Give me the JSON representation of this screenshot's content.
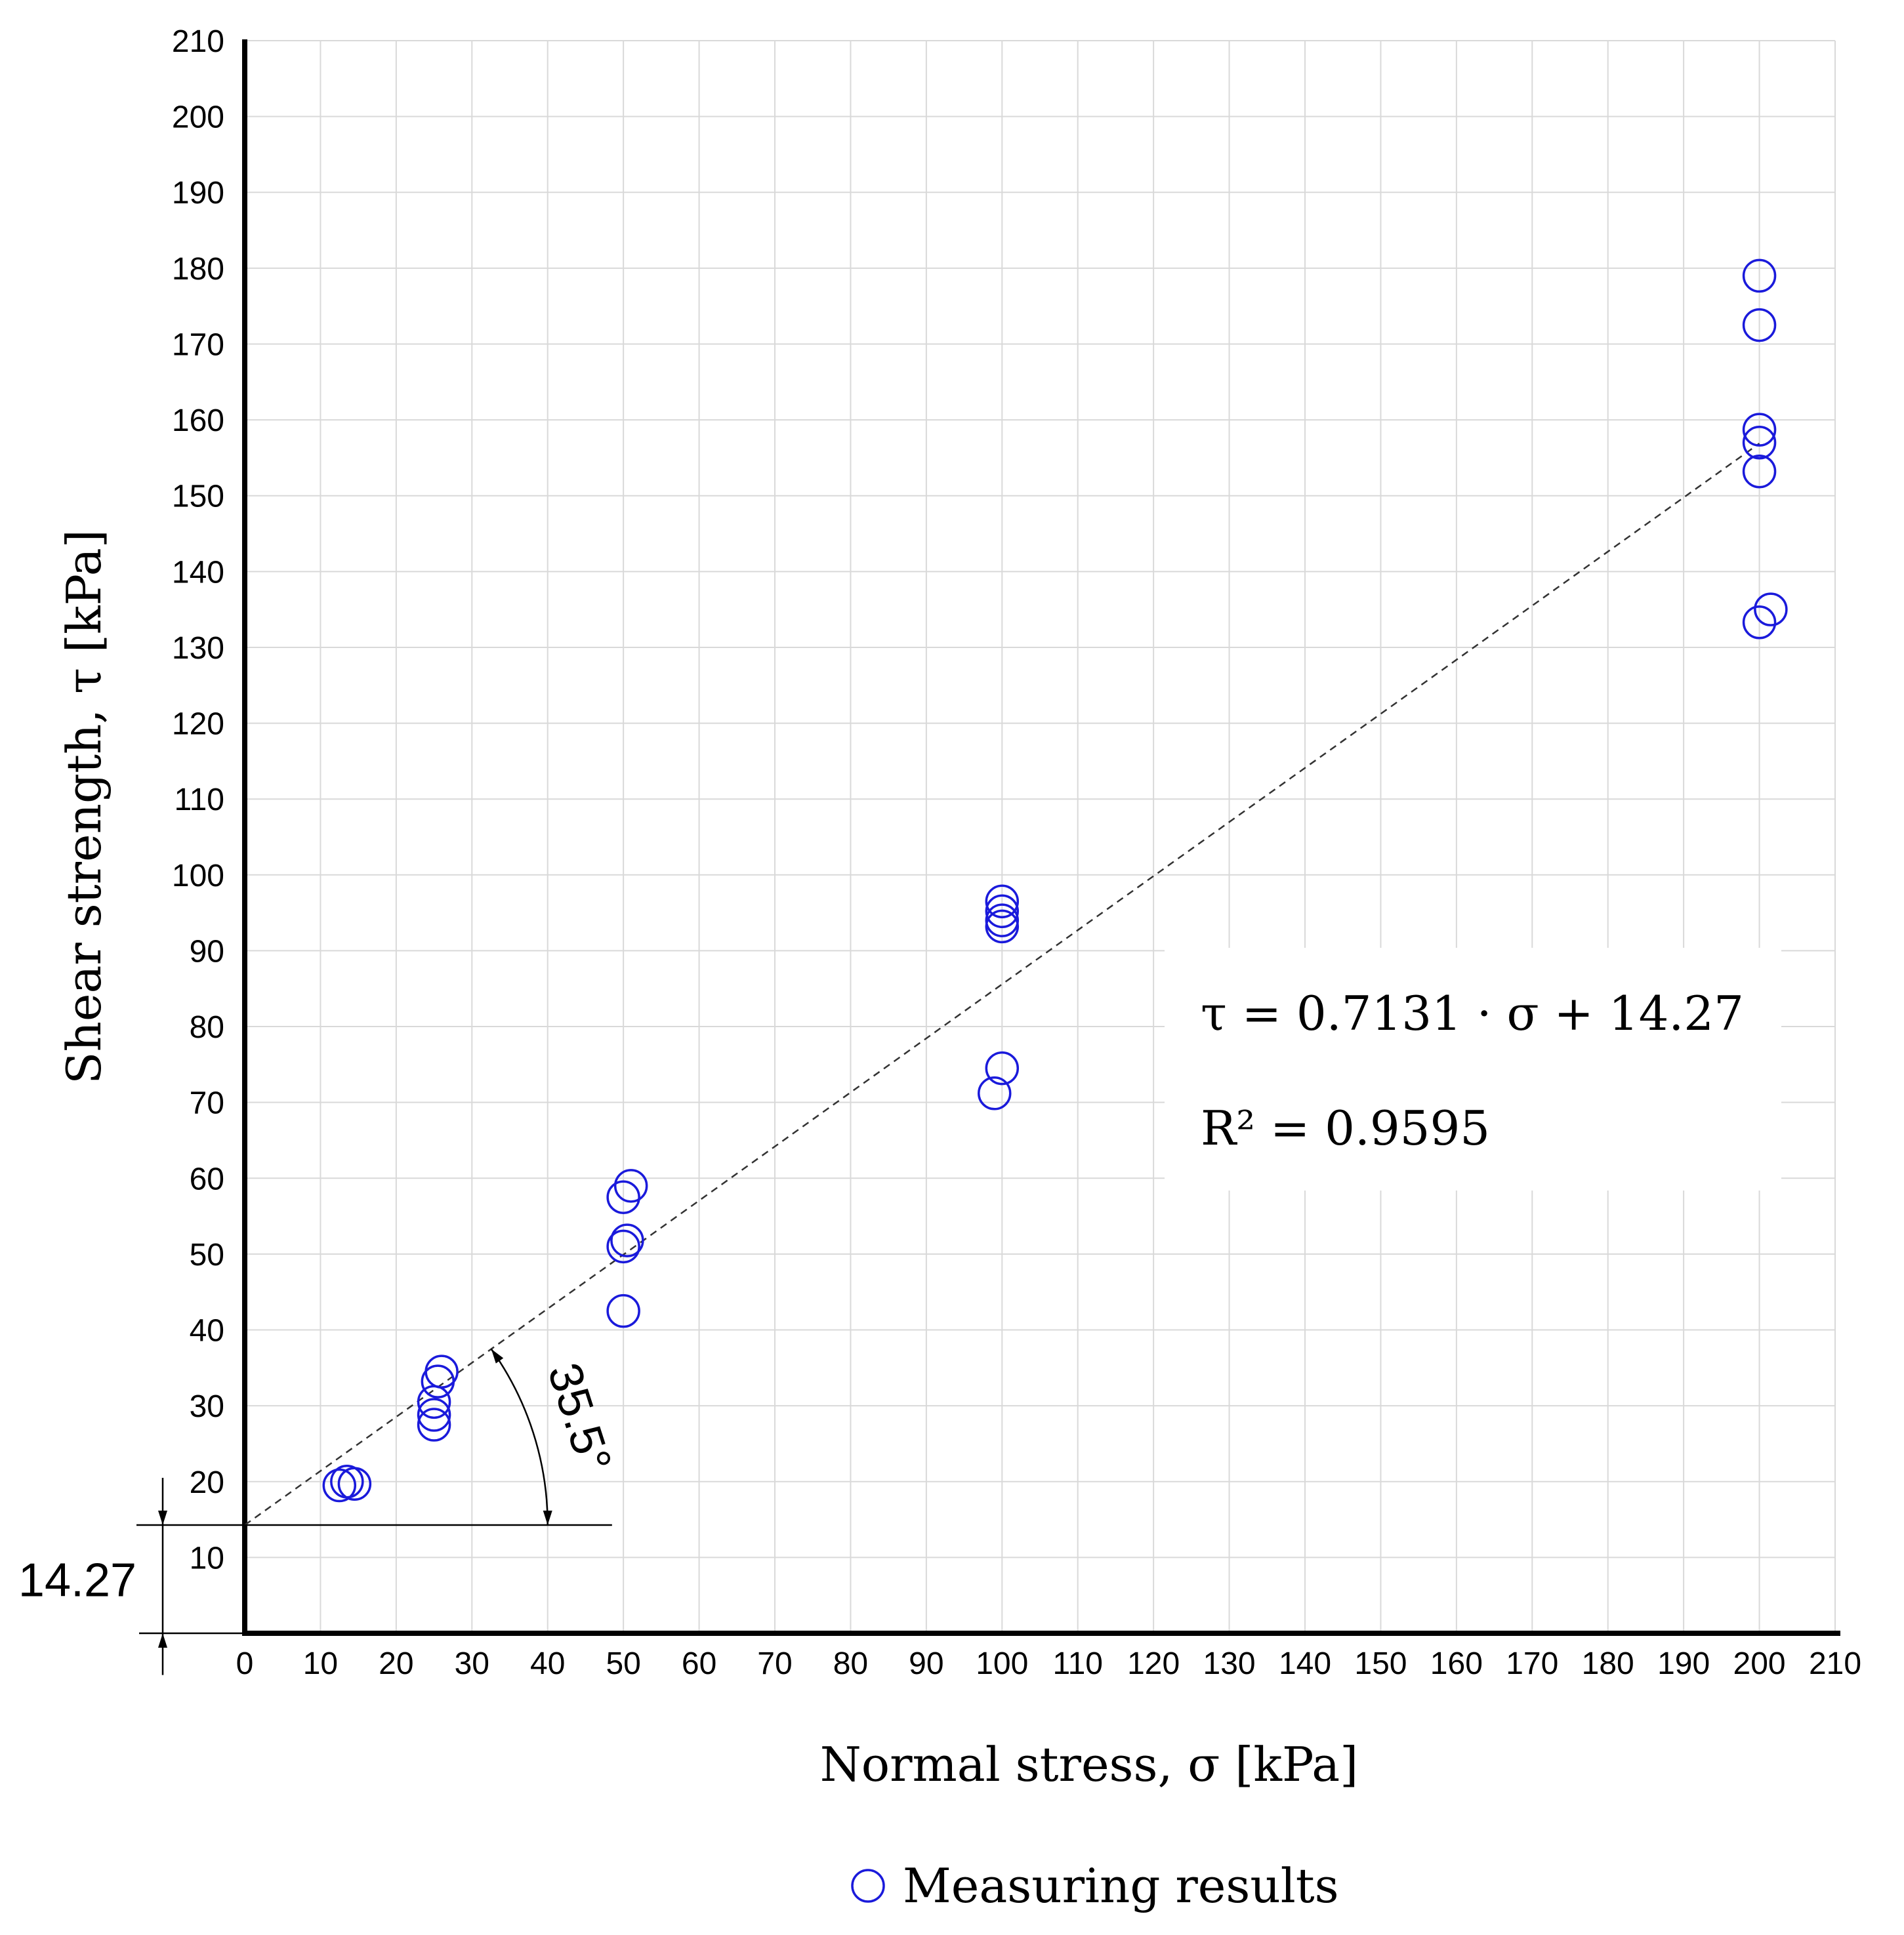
{
  "chart_data": {
    "type": "scatter",
    "title": "",
    "xlabel": "Normal stress, σ [kPa]",
    "ylabel": "Shear strength, τ [kPa]",
    "xlim": [
      0,
      210
    ],
    "ylim": [
      0,
      210
    ],
    "x_ticks": [
      0,
      10,
      20,
      30,
      40,
      50,
      60,
      70,
      80,
      90,
      100,
      110,
      120,
      130,
      140,
      150,
      160,
      170,
      180,
      190,
      200,
      210
    ],
    "y_ticks": [
      10,
      20,
      30,
      40,
      50,
      60,
      70,
      80,
      90,
      100,
      110,
      120,
      130,
      140,
      150,
      160,
      170,
      180,
      190,
      200,
      210
    ],
    "grid": true,
    "series": [
      {
        "name": "Measuring results",
        "marker": "open-circle",
        "color": "#1a1adb",
        "points": [
          [
            12.5,
            19.5
          ],
          [
            13.5,
            20.0
          ],
          [
            14.5,
            19.7
          ],
          [
            25.0,
            27.5
          ],
          [
            25.0,
            28.8
          ],
          [
            25.0,
            30.5
          ],
          [
            25.5,
            33.2
          ],
          [
            26.0,
            34.5
          ],
          [
            50.0,
            42.5
          ],
          [
            50.0,
            57.5
          ],
          [
            50.0,
            51.0
          ],
          [
            50.5,
            51.8
          ],
          [
            51.0,
            59.0
          ],
          [
            99.0,
            71.2
          ],
          [
            100.0,
            74.5
          ],
          [
            100.0,
            93.2
          ],
          [
            100.0,
            94.0
          ],
          [
            100.0,
            95.2
          ],
          [
            100.0,
            96.5
          ],
          [
            200.0,
            133.3
          ],
          [
            201.5,
            135.0
          ],
          [
            200.0,
            153.2
          ],
          [
            200.0,
            157.0
          ],
          [
            200.0,
            158.7
          ],
          [
            200.0,
            172.5
          ],
          [
            200.0,
            179.0
          ]
        ]
      }
    ],
    "fit": {
      "slope": 0.7131,
      "intercept": 14.27,
      "x_range": [
        0,
        200
      ],
      "equation_label": "τ = 0.7131 · σ + 14.27",
      "r2_label": "R² = 0.9595"
    },
    "annotations": {
      "intercept_label": "14.27",
      "angle_label": "35.5°",
      "angle_degrees": 35.5
    },
    "legend": {
      "label": "Measuring results",
      "placement": "bottom-center"
    }
  }
}
